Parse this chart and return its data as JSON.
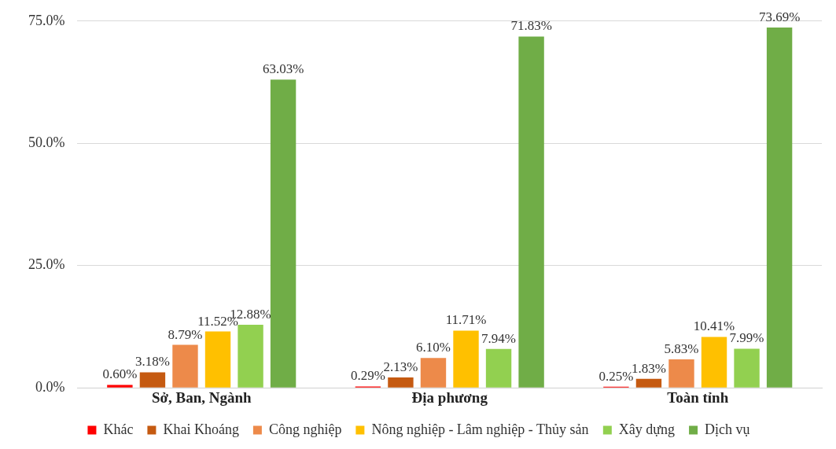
{
  "chart_data": {
    "type": "bar",
    "categories": [
      "Sở, Ban, Ngành",
      "Địa phương",
      "Toàn tỉnh"
    ],
    "series": [
      {
        "name": "Khác",
        "color": "#ff0000",
        "values": [
          0.6,
          0.29,
          0.25
        ],
        "value_labels": [
          "0.60%",
          "0.29%",
          "0.25%"
        ]
      },
      {
        "name": "Khai Khoáng",
        "color": "#c55a11",
        "values": [
          3.18,
          2.13,
          1.83
        ],
        "value_labels": [
          "3.18%",
          "2.13%",
          "1.83%"
        ]
      },
      {
        "name": "Công nghiệp",
        "color": "#ed8a4a",
        "values": [
          8.79,
          6.1,
          5.83
        ],
        "value_labels": [
          "8.79%",
          "6.10%",
          "5.83%"
        ]
      },
      {
        "name": "Nông nghiệp - Lâm nghiệp - Thủy sản",
        "color": "#ffc000",
        "values": [
          11.52,
          11.71,
          10.41
        ],
        "value_labels": [
          "11.52%",
          "11.71%",
          "10.41%"
        ]
      },
      {
        "name": "Xây dựng",
        "color": "#92d050",
        "values": [
          12.88,
          7.94,
          7.99
        ],
        "value_labels": [
          "12.88%",
          "7.94%",
          "7.99%"
        ]
      },
      {
        "name": "Dịch vụ",
        "color": "#70ad47",
        "values": [
          63.03,
          71.83,
          73.69
        ],
        "value_labels": [
          "63.03%",
          "71.83%",
          "73.69%"
        ]
      }
    ],
    "ylim": [
      0,
      75
    ],
    "yticks": [
      {
        "value": 0,
        "label": "0.0%"
      },
      {
        "value": 25,
        "label": "25.0%"
      },
      {
        "value": 50,
        "label": "50.0%"
      },
      {
        "value": 75,
        "label": "75.0%"
      }
    ],
    "grid": "y",
    "legend": "bottom"
  }
}
